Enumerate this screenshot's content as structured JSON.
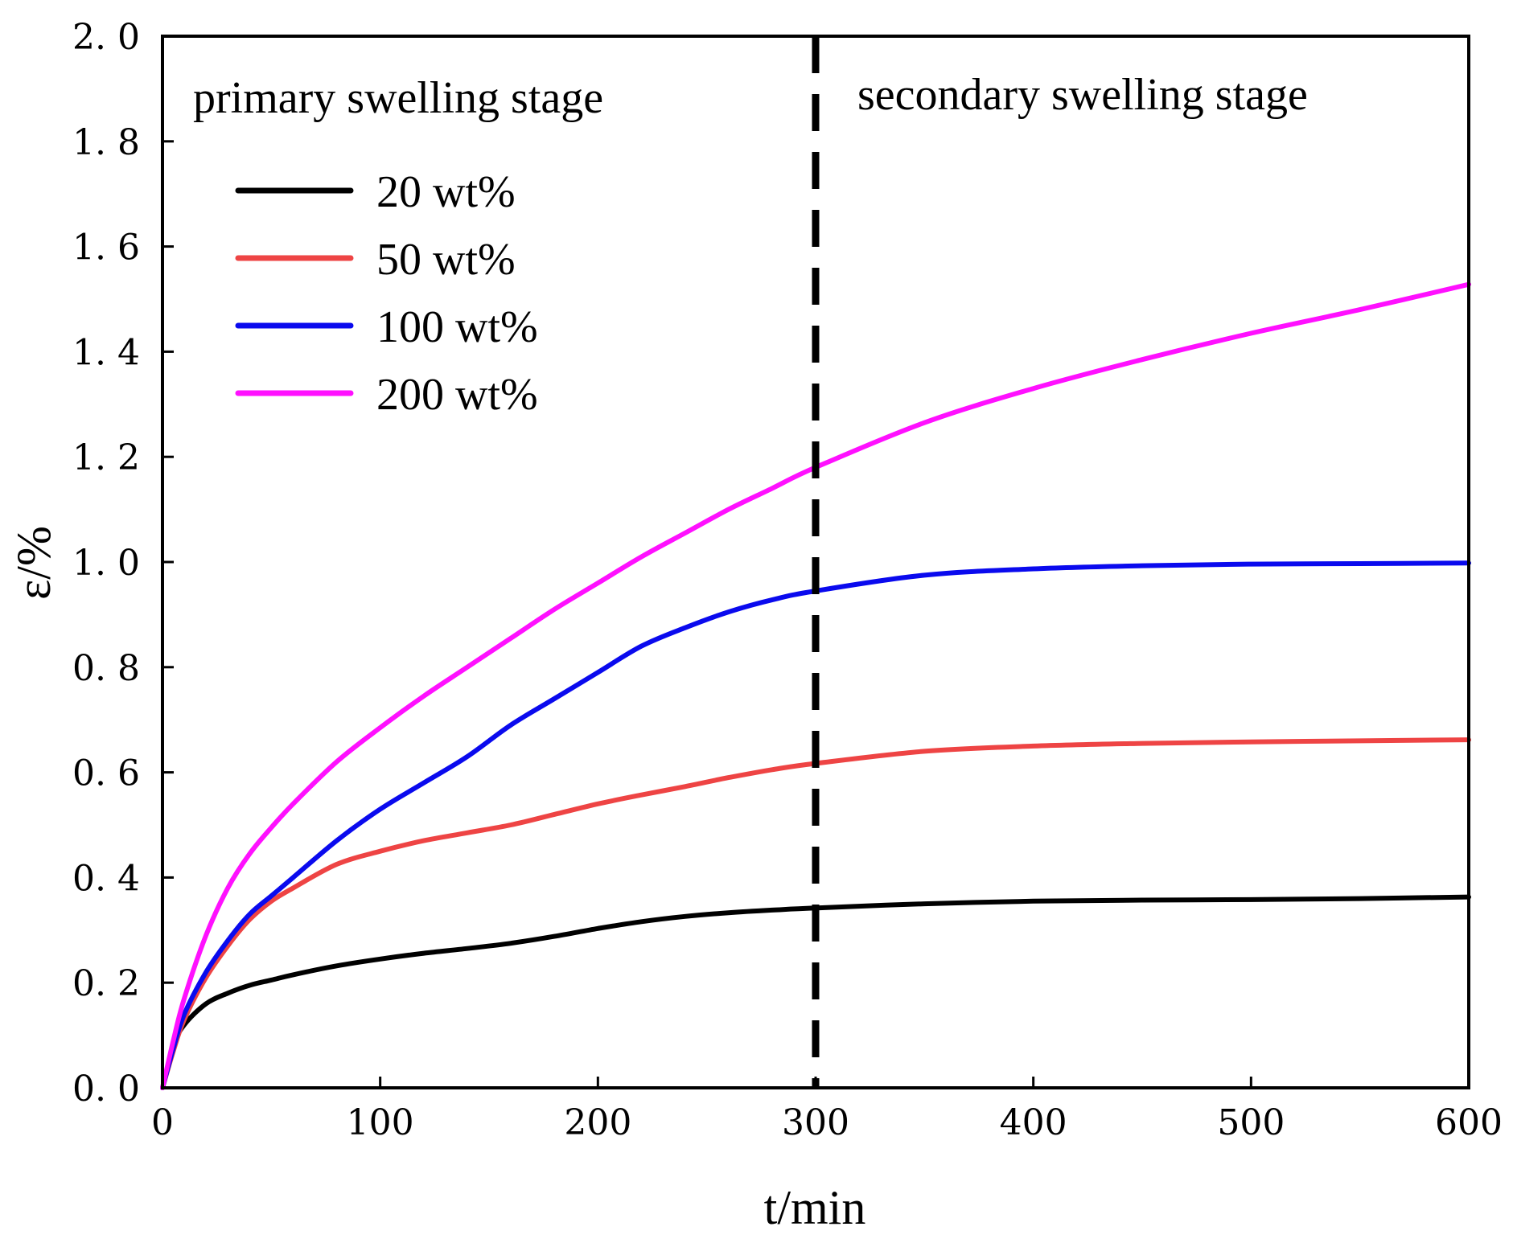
{
  "chart_data": {
    "type": "line",
    "title": "",
    "xlabel": "t/min",
    "ylabel": "ε/%",
    "xlim": [
      0,
      600
    ],
    "ylim": [
      0,
      2.0
    ],
    "xticks": [
      0,
      100,
      200,
      300,
      400,
      500,
      600
    ],
    "yticks": [
      0.0,
      0.2,
      0.4,
      0.6,
      0.8,
      1.0,
      1.2,
      1.4,
      1.6,
      1.8,
      2.0
    ],
    "xtick_labels": [
      "0",
      "100",
      "200",
      "300",
      "400",
      "500",
      "600"
    ],
    "ytick_labels": [
      "0. 0",
      "0. 2",
      "0. 4",
      "0. 6",
      "0. 8",
      "1. 0",
      "1. 2",
      "1. 4",
      "1. 6",
      "1. 8",
      "2. 0"
    ],
    "grid": false,
    "legend_position": "top-left",
    "annotations": [
      {
        "text": "primary swelling stage",
        "region": "left"
      },
      {
        "text": "secondary swelling stage",
        "region": "right"
      }
    ],
    "divider": {
      "x": 300,
      "style": "dashed",
      "color": "#000000"
    },
    "x": [
      0,
      5,
      10,
      20,
      30,
      40,
      50,
      60,
      80,
      100,
      120,
      140,
      160,
      180,
      200,
      220,
      240,
      260,
      280,
      300,
      350,
      400,
      450,
      500,
      550,
      600
    ],
    "series": [
      {
        "name": "20 wt%",
        "color": "#000000",
        "values": [
          0.0,
          0.08,
          0.12,
          0.16,
          0.18,
          0.195,
          0.205,
          0.215,
          0.232,
          0.245,
          0.256,
          0.265,
          0.275,
          0.288,
          0.303,
          0.316,
          0.326,
          0.333,
          0.338,
          0.342,
          0.35,
          0.355,
          0.357,
          0.358,
          0.36,
          0.363
        ]
      },
      {
        "name": "50 wt%",
        "color": "#ee4444",
        "values": [
          0.0,
          0.07,
          0.13,
          0.21,
          0.27,
          0.32,
          0.355,
          0.38,
          0.425,
          0.45,
          0.47,
          0.485,
          0.5,
          0.52,
          0.54,
          0.557,
          0.573,
          0.59,
          0.605,
          0.617,
          0.64,
          0.65,
          0.655,
          0.658,
          0.66,
          0.662
        ]
      },
      {
        "name": "100 wt%",
        "color": "#0a0aee",
        "values": [
          0.0,
          0.075,
          0.14,
          0.22,
          0.28,
          0.33,
          0.365,
          0.4,
          0.47,
          0.53,
          0.58,
          0.63,
          0.69,
          0.74,
          0.79,
          0.84,
          0.875,
          0.905,
          0.928,
          0.945,
          0.975,
          0.987,
          0.993,
          0.996,
          0.997,
          0.998
        ]
      },
      {
        "name": "200 wt%",
        "color": "#ff10ff",
        "values": [
          0.0,
          0.09,
          0.17,
          0.29,
          0.38,
          0.445,
          0.495,
          0.54,
          0.62,
          0.685,
          0.745,
          0.8,
          0.855,
          0.91,
          0.96,
          1.01,
          1.055,
          1.1,
          1.14,
          1.18,
          1.265,
          1.33,
          1.385,
          1.435,
          1.48,
          1.528
        ]
      }
    ]
  }
}
